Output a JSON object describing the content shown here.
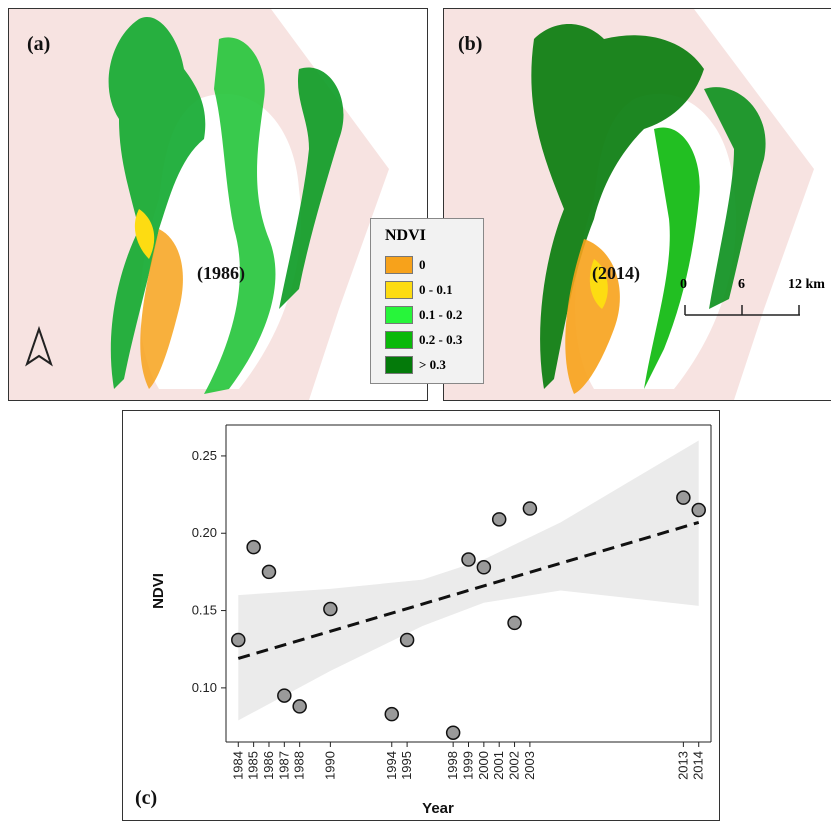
{
  "panels": {
    "a": {
      "label": "(a)",
      "year": "(1986)"
    },
    "b": {
      "label": "(b)",
      "year": "(2014)"
    },
    "c": {
      "label": "(c)"
    }
  },
  "legend": {
    "title": "NDVI",
    "items": [
      {
        "label": "0",
        "color": "#f7a21b"
      },
      {
        "label": "0 - 0.1",
        "color": "#fddc12"
      },
      {
        "label": "0.1 - 0.2",
        "color": "#27f53a"
      },
      {
        "label": "0.2 - 0.3",
        "color": "#0ab80a"
      },
      {
        "label": "> 0.3",
        "color": "#047a0a"
      }
    ]
  },
  "scalebar": {
    "labels": [
      "0",
      "6",
      "12 km"
    ]
  },
  "colors": {
    "background": "#f7e3e1",
    "water": "#ffffff",
    "point_fill": "#9a9a9a",
    "ci_band": "#ebebeb"
  },
  "chart_data": {
    "type": "scatter",
    "xlabel": "Year",
    "ylabel": "NDVI",
    "x_ticks": [
      1984,
      1985,
      1986,
      1987,
      1988,
      1990,
      1994,
      1995,
      1998,
      1999,
      2000,
      2001,
      2002,
      2003,
      2013,
      2014
    ],
    "x": [
      1984,
      1985,
      1986,
      1987,
      1988,
      1990,
      1994,
      1995,
      1998,
      1999,
      2000,
      2001,
      2002,
      2003,
      2013,
      2014
    ],
    "y": [
      0.131,
      0.191,
      0.175,
      0.095,
      0.088,
      0.151,
      0.083,
      0.131,
      0.071,
      0.183,
      0.178,
      0.209,
      0.142,
      0.216,
      0.223,
      0.215
    ],
    "y_ticks": [
      "0.10",
      "0.15",
      "0.20",
      "0.25"
    ],
    "ylim": [
      0.065,
      0.27
    ],
    "xlim": [
      1983.2,
      2014.8
    ],
    "trend": {
      "x": [
        1984,
        2014
      ],
      "y": [
        0.119,
        0.207
      ],
      "style": "dashed"
    },
    "confidence_band": {
      "x": [
        1984,
        1990,
        1996,
        2000,
        2005,
        2014
      ],
      "lower": [
        0.079,
        0.111,
        0.14,
        0.155,
        0.163,
        0.153
      ],
      "upper": [
        0.16,
        0.164,
        0.17,
        0.183,
        0.207,
        0.26
      ]
    },
    "grid": false
  }
}
